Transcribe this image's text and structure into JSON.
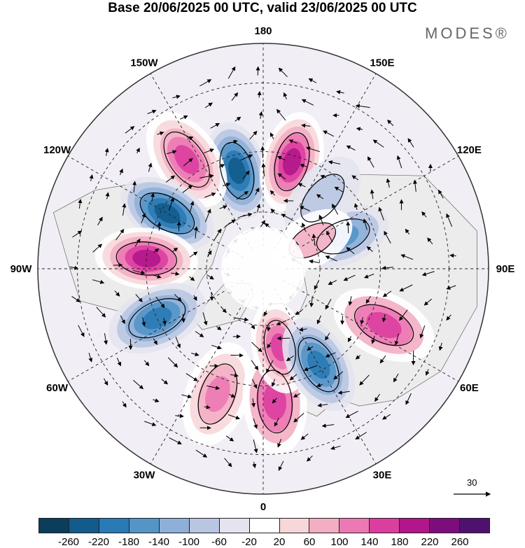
{
  "header": {
    "title": "Base 20/06/2025 00 UTC, valid 23/06/2025 00 UTC",
    "brand": "MODES®"
  },
  "map": {
    "projection": "north-polar-stereographic",
    "longitude_labels": [
      "180",
      "150E",
      "120E",
      "90E",
      "60E",
      "30E",
      "0",
      "30W",
      "60W",
      "90W",
      "120W",
      "150W"
    ],
    "colors": {
      "land_fill": "#ececec",
      "coast": "#666666",
      "graticule": "#222222",
      "frame": "#333333"
    },
    "anomaly_centres": [
      {
        "id": "neg-1",
        "sign": "negative",
        "lon": -165,
        "lat": 55,
        "peak": -230
      },
      {
        "id": "pos-1",
        "sign": "positive",
        "lon": 165,
        "lat": 52,
        "peak": 220
      },
      {
        "id": "pos-2",
        "sign": "positive",
        "lon": -145,
        "lat": 45,
        "peak": 180
      },
      {
        "id": "neg-2",
        "sign": "negative",
        "lon": -120,
        "lat": 52,
        "peak": -220
      },
      {
        "id": "pos-3",
        "sign": "positive",
        "lon": -95,
        "lat": 50,
        "peak": 220
      },
      {
        "id": "neg-3",
        "sign": "negative",
        "lon": -65,
        "lat": 50,
        "peak": -180
      },
      {
        "id": "pos-4",
        "sign": "positive",
        "lon": -20,
        "lat": 45,
        "peak": 140
      },
      {
        "id": "pos-5",
        "sign": "positive",
        "lon": 5,
        "lat": 45,
        "peak": 160
      },
      {
        "id": "pos-6",
        "sign": "positive",
        "lon": 12,
        "lat": 62,
        "peak": 180
      },
      {
        "id": "neg-4",
        "sign": "negative",
        "lon": 30,
        "lat": 52,
        "peak": -200
      },
      {
        "id": "pos-7",
        "sign": "positive",
        "lon": 65,
        "lat": 45,
        "peak": 160
      },
      {
        "id": "neg-5",
        "sign": "negative",
        "lon": 112,
        "lat": 60,
        "peak": -140
      },
      {
        "id": "neg-6",
        "sign": "negative",
        "lon": 140,
        "lat": 58,
        "peak": -80
      },
      {
        "id": "pos-8",
        "sign": "positive",
        "lon": 120,
        "lat": 70,
        "peak": 80
      }
    ]
  },
  "vector_scale": {
    "value": "30"
  },
  "colorbar": {
    "colors": [
      "#0b3d5c",
      "#135b8c",
      "#2a7ab5",
      "#5495c8",
      "#8eb0d8",
      "#b9c6e2",
      "#e4e4f0",
      "#ffffff",
      "#f7d7da",
      "#f3aec3",
      "#ec79b4",
      "#db3e9e",
      "#b2168a",
      "#7d0d7c",
      "#4e1170"
    ],
    "labels": [
      "-260",
      "-220",
      "-180",
      "-140",
      "-100",
      "-60",
      "-20",
      "20",
      "60",
      "100",
      "140",
      "180",
      "220",
      "260"
    ]
  }
}
